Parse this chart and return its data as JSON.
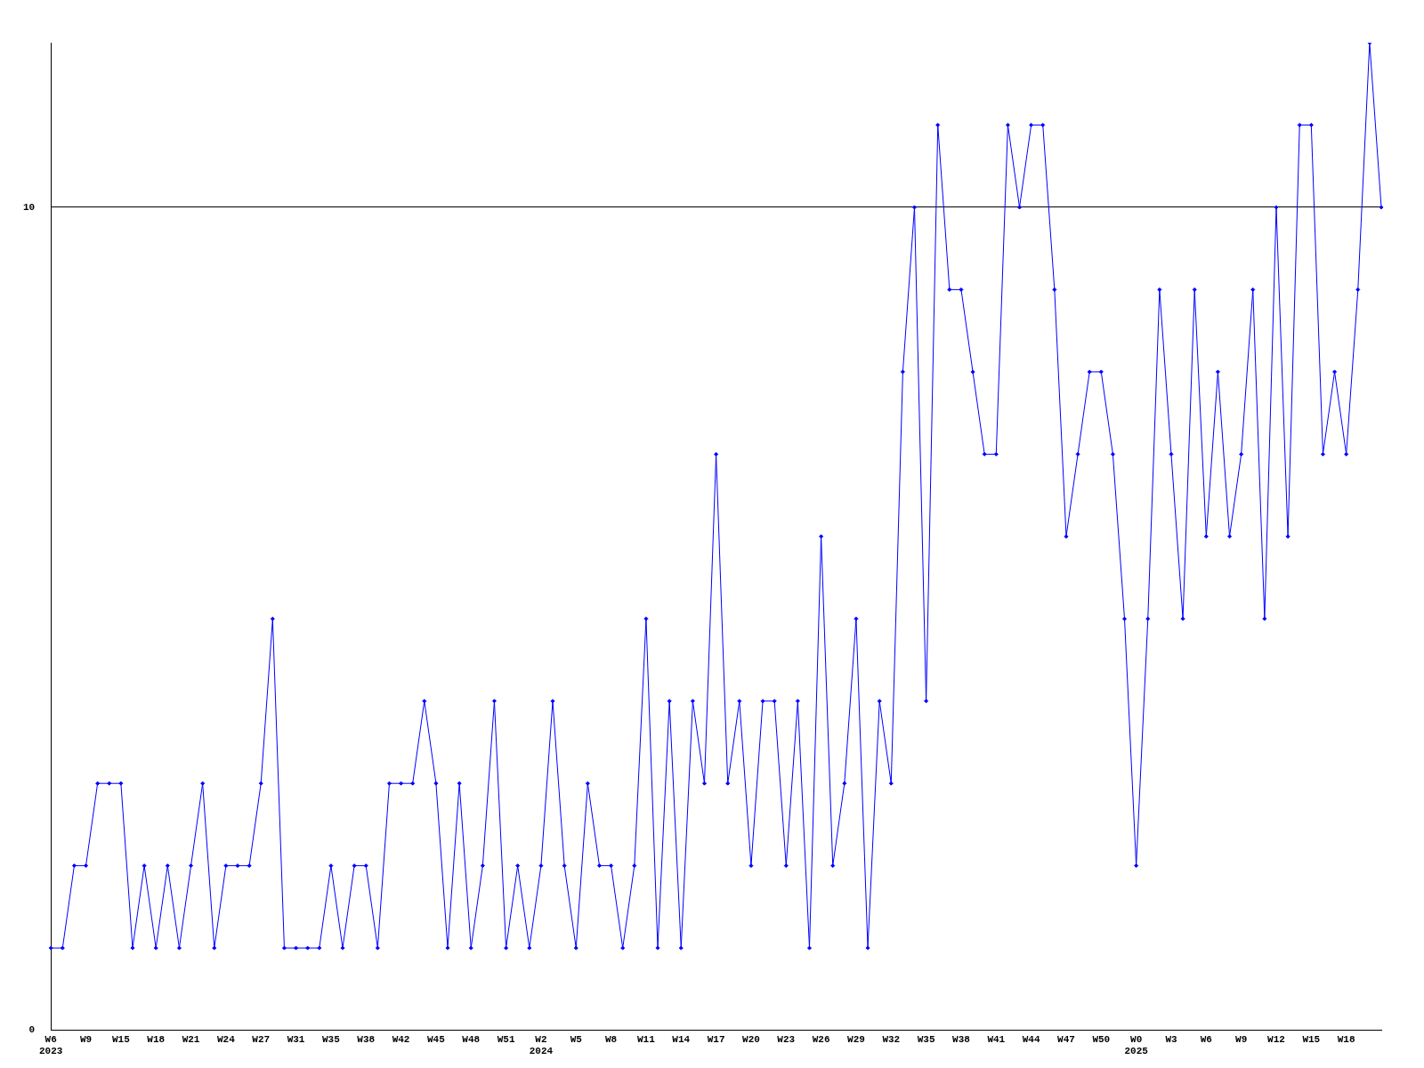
{
  "chart_data": {
    "type": "line",
    "categories": [
      "W6\n2023",
      null,
      null,
      "W9",
      null,
      null,
      "W15",
      null,
      null,
      "W18",
      null,
      null,
      "W21",
      null,
      null,
      "W24",
      null,
      null,
      "W27",
      null,
      null,
      "W31",
      null,
      null,
      "W35",
      null,
      null,
      "W38",
      null,
      null,
      "W42",
      null,
      null,
      "W45",
      null,
      null,
      "W48",
      null,
      null,
      "W51",
      null,
      null,
      "W2\n2024",
      null,
      null,
      "W5",
      null,
      null,
      "W8",
      null,
      null,
      "W11",
      null,
      null,
      "W14",
      null,
      null,
      "W17",
      null,
      null,
      "W20",
      null,
      null,
      "W23",
      null,
      null,
      "W26",
      null,
      null,
      "W29",
      null,
      null,
      "W32",
      null,
      null,
      "W35",
      null,
      null,
      "W38",
      null,
      null,
      "W41",
      null,
      null,
      "W44",
      null,
      null,
      "W47",
      null,
      null,
      "W50",
      null,
      null,
      "W0\n2025",
      null,
      null,
      "W3",
      null,
      null,
      "W6",
      null,
      null,
      "W9",
      null,
      null,
      "W12",
      null,
      null,
      "W15",
      null,
      null,
      "W18",
      null,
      null,
      null
    ],
    "series": [
      {
        "color": "#0000ff",
        "values": [
          1,
          1,
          2,
          2,
          3,
          3,
          3,
          1,
          2,
          1,
          2,
          1,
          2,
          3,
          1,
          2,
          2,
          2,
          3,
          5,
          1,
          1,
          1,
          1,
          2,
          1,
          2,
          2,
          1,
          3,
          3,
          3,
          4,
          3,
          1,
          3,
          1,
          2,
          4,
          1,
          2,
          1,
          2,
          4,
          2,
          1,
          3,
          2,
          2,
          1,
          2,
          5,
          1,
          4,
          1,
          4,
          3,
          7,
          3,
          4,
          2,
          4,
          4,
          2,
          4,
          1,
          6,
          2,
          3,
          5,
          1,
          4,
          3,
          8,
          10,
          4,
          11,
          9,
          9,
          8,
          7,
          7,
          11,
          10,
          11,
          11,
          9,
          6,
          7,
          8,
          8,
          7,
          5,
          2,
          5,
          9,
          7,
          5,
          9,
          6,
          8,
          6,
          7,
          9,
          5,
          10,
          6,
          11,
          11,
          7,
          8,
          7,
          9,
          12,
          10
        ]
      }
    ],
    "ylim": [
      0,
      12
    ],
    "yticks": [
      0,
      10
    ],
    "grid": "y",
    "legend": false,
    "marker": "diamond",
    "line_style": "solid"
  }
}
